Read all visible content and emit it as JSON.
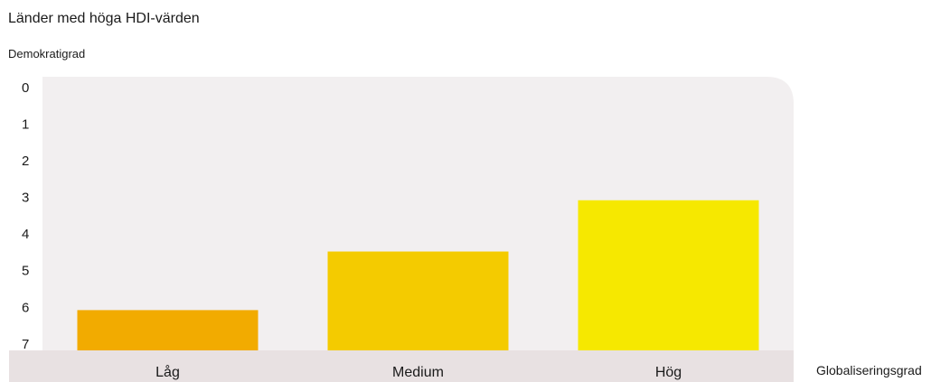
{
  "chart_data": {
    "type": "bar",
    "title": "Länder med höga HDI-värden",
    "ylabel": "Demokratigrad",
    "xlabel": "Globaliseringsgrad",
    "categories": [
      "Låg",
      "Medium",
      "Hög"
    ],
    "values": [
      6.2,
      4.6,
      3.2
    ],
    "y_ticks": [
      "0",
      "1",
      "2",
      "3",
      "4",
      "5",
      "6",
      "7"
    ],
    "ylim": [
      0,
      7.3
    ],
    "y_inverted": true,
    "bar_colors": [
      "#f2ab00",
      "#f4cb00",
      "#f6e800"
    ],
    "plot_background": "#f2eff0",
    "axis_band_color": "#e8e1e2",
    "grid": false,
    "legend": "none"
  }
}
